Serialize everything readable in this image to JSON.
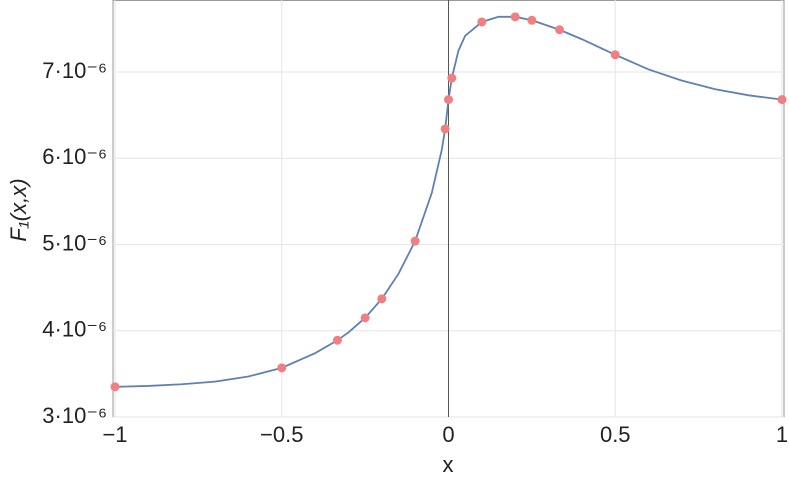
{
  "chart_data": {
    "type": "line-scatter",
    "xlabel": "x",
    "ylabel": "F₁(x,x)",
    "xlim": [
      -1,
      1
    ],
    "ylim": [
      3e-06,
      7.835e-06
    ],
    "xticks": [
      {
        "value": -1,
        "label": "−1"
      },
      {
        "value": -0.5,
        "label": "−0.5"
      },
      0,
      0.5,
      1
    ],
    "yticks": [
      {
        "value": 3e-06,
        "label": "3·10⁻⁶"
      },
      {
        "value": 4e-06,
        "label": "4·10⁻⁶"
      },
      {
        "value": 5e-06,
        "label": "5·10⁻⁶"
      },
      {
        "value": 6e-06,
        "label": "6·10⁻⁶"
      },
      {
        "value": 7e-06,
        "label": "7·10⁻⁶"
      }
    ],
    "grid": true,
    "series": [
      {
        "type": "line",
        "color": "#5e81b5",
        "x": [
          -1,
          -0.9,
          -0.8,
          -0.7,
          -0.6,
          -0.5,
          -0.4,
          -0.333,
          -0.3,
          -0.25,
          -0.2,
          -0.15,
          -0.1,
          -0.05,
          -0.02,
          -0.01,
          0,
          0.01,
          0.03,
          0.05,
          0.1,
          0.15,
          0.2,
          0.25,
          0.333,
          0.4,
          0.5,
          0.6,
          0.7,
          0.8,
          0.9,
          1
        ],
        "values": [
          3.35e-06,
          3.36e-06,
          3.38e-06,
          3.41e-06,
          3.47e-06,
          3.57e-06,
          3.74e-06,
          3.89e-06,
          3.98e-06,
          4.15e-06,
          4.37e-06,
          4.66e-06,
          5.04e-06,
          5.6e-06,
          6.1e-06,
          6.34e-06,
          6.68e-06,
          6.93e-06,
          7.25e-06,
          7.42e-06,
          7.58e-06,
          7.64e-06,
          7.64e-06,
          7.6e-06,
          7.49e-06,
          7.38e-06,
          7.2e-06,
          7.03e-06,
          6.9e-06,
          6.8e-06,
          6.73e-06,
          6.68e-06
        ]
      },
      {
        "type": "scatter",
        "color": "#f27f7f",
        "x": [
          -1,
          -0.5,
          -0.333,
          -0.25,
          -0.2,
          -0.1,
          -0.01,
          0,
          0.01,
          0.1,
          0.2,
          0.25,
          0.333,
          0.5,
          1
        ],
        "values": [
          3.35e-06,
          3.57e-06,
          3.89e-06,
          4.15e-06,
          4.37e-06,
          5.04e-06,
          6.34e-06,
          6.68e-06,
          6.93e-06,
          7.58e-06,
          7.64e-06,
          7.6e-06,
          7.49e-06,
          7.2e-06,
          6.68e-06
        ]
      }
    ]
  }
}
